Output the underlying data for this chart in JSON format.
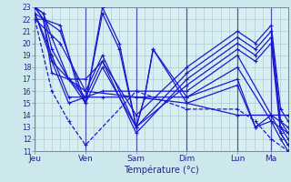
{
  "bg_color": "#cce8ec",
  "plot_bg_color": "#d8eef2",
  "line_color": "#1a1acc",
  "grid_color": "#a0c8cc",
  "day_color": "#5555aa",
  "ylim": [
    11,
    23
  ],
  "yticks": [
    11,
    12,
    13,
    14,
    15,
    16,
    17,
    18,
    19,
    20,
    21,
    22,
    23
  ],
  "day_positions": [
    0,
    54,
    108,
    162,
    216,
    252
  ],
  "day_labels": [
    "Jeu",
    "Ven",
    "Sam",
    "Dim",
    "Lun",
    "Ma"
  ],
  "xlim": [
    0,
    270
  ],
  "xlabel": "Température (°c)",
  "curves": [
    {
      "x": [
        0,
        27,
        54,
        108,
        162,
        216,
        252,
        270
      ],
      "y": [
        22.0,
        20.0,
        16.0,
        15.5,
        15.0,
        14.0,
        14.0,
        14.0
      ],
      "dashed": false
    },
    {
      "x": [
        0,
        18,
        36,
        54,
        72,
        108,
        162,
        216,
        252,
        270
      ],
      "y": [
        22.5,
        18.5,
        15.0,
        15.5,
        15.5,
        15.5,
        15.5,
        18.0,
        13.5,
        12.5
      ],
      "dashed": false
    },
    {
      "x": [
        0,
        18,
        36,
        54,
        72,
        108,
        162,
        216,
        252,
        270
      ],
      "y": [
        22.5,
        19.0,
        15.5,
        15.5,
        16.0,
        16.0,
        16.0,
        19.0,
        14.0,
        13.0
      ],
      "dashed": false
    },
    {
      "x": [
        0,
        9,
        18,
        36,
        54,
        72,
        108,
        162,
        216,
        235,
        252,
        262,
        270
      ],
      "y": [
        23.0,
        22.5,
        20.5,
        17.0,
        15.0,
        18.0,
        13.0,
        16.5,
        19.5,
        18.5,
        20.0,
        12.5,
        11.5
      ],
      "dashed": false
    },
    {
      "x": [
        0,
        9,
        18,
        36,
        54,
        72,
        108,
        162,
        216,
        235,
        252,
        262,
        270
      ],
      "y": [
        23.0,
        22.5,
        19.5,
        17.0,
        15.5,
        18.5,
        12.5,
        17.0,
        20.0,
        19.0,
        20.5,
        13.0,
        12.0
      ],
      "dashed": false
    },
    {
      "x": [
        0,
        9,
        18,
        36,
        54,
        72,
        108,
        162,
        216,
        235,
        252,
        262,
        270
      ],
      "y": [
        22.5,
        22.0,
        18.5,
        17.0,
        16.0,
        19.0,
        13.0,
        17.5,
        20.5,
        19.5,
        21.0,
        13.5,
        12.5
      ],
      "dashed": false
    },
    {
      "x": [
        0,
        9,
        18,
        36,
        54,
        72,
        108,
        162,
        216,
        235,
        252,
        262,
        270
      ],
      "y": [
        22.0,
        22.0,
        17.5,
        17.0,
        17.0,
        18.5,
        14.0,
        18.0,
        21.0,
        20.0,
        21.5,
        14.5,
        13.5
      ],
      "dashed": false
    },
    {
      "x": [
        0,
        9,
        27,
        45,
        54,
        72,
        90,
        108,
        117,
        126,
        162,
        216,
        235,
        252,
        262,
        270
      ],
      "y": [
        23.0,
        22.0,
        21.0,
        17.0,
        15.0,
        23.0,
        20.0,
        13.0,
        15.5,
        19.5,
        15.0,
        16.5,
        13.0,
        13.5,
        12.0,
        11.0
      ],
      "dashed": false
    },
    {
      "x": [
        0,
        9,
        27,
        45,
        54,
        72,
        90,
        108,
        117,
        126,
        162,
        216,
        235,
        252,
        262,
        270
      ],
      "y": [
        23.0,
        22.0,
        21.5,
        16.5,
        15.0,
        22.5,
        19.5,
        13.0,
        15.5,
        19.5,
        15.5,
        17.0,
        13.0,
        14.0,
        12.5,
        11.5
      ],
      "dashed": false
    },
    {
      "x": [
        0,
        18,
        36,
        54,
        108,
        162,
        216,
        235,
        252,
        270
      ],
      "y": [
        22.0,
        16.0,
        13.5,
        11.5,
        16.0,
        14.5,
        14.5,
        13.5,
        12.0,
        11.0
      ],
      "dashed": true
    }
  ]
}
